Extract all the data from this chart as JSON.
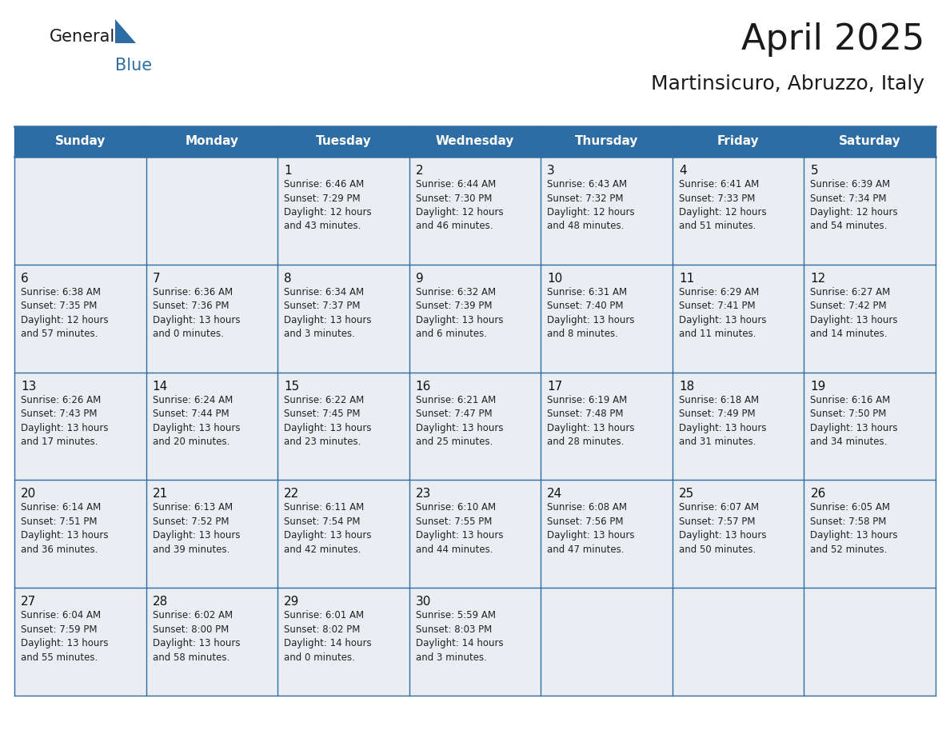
{
  "title": "April 2025",
  "subtitle": "Martinsicuro, Abruzzo, Italy",
  "header_bg": "#2E6DA4",
  "header_text": "#FFFFFF",
  "cell_bg": "#EAEEF2",
  "cell_bg_empty": "#EAEEF2",
  "day_number_color": "#111111",
  "text_color": "#222222",
  "line_color": "#2E6DA4",
  "bg_color": "#FFFFFF",
  "days_of_week": [
    "Sunday",
    "Monday",
    "Tuesday",
    "Wednesday",
    "Thursday",
    "Friday",
    "Saturday"
  ],
  "weeks": [
    [
      {
        "day": "",
        "info": ""
      },
      {
        "day": "",
        "info": ""
      },
      {
        "day": "1",
        "info": "Sunrise: 6:46 AM\nSunset: 7:29 PM\nDaylight: 12 hours\nand 43 minutes."
      },
      {
        "day": "2",
        "info": "Sunrise: 6:44 AM\nSunset: 7:30 PM\nDaylight: 12 hours\nand 46 minutes."
      },
      {
        "day": "3",
        "info": "Sunrise: 6:43 AM\nSunset: 7:32 PM\nDaylight: 12 hours\nand 48 minutes."
      },
      {
        "day": "4",
        "info": "Sunrise: 6:41 AM\nSunset: 7:33 PM\nDaylight: 12 hours\nand 51 minutes."
      },
      {
        "day": "5",
        "info": "Sunrise: 6:39 AM\nSunset: 7:34 PM\nDaylight: 12 hours\nand 54 minutes."
      }
    ],
    [
      {
        "day": "6",
        "info": "Sunrise: 6:38 AM\nSunset: 7:35 PM\nDaylight: 12 hours\nand 57 minutes."
      },
      {
        "day": "7",
        "info": "Sunrise: 6:36 AM\nSunset: 7:36 PM\nDaylight: 13 hours\nand 0 minutes."
      },
      {
        "day": "8",
        "info": "Sunrise: 6:34 AM\nSunset: 7:37 PM\nDaylight: 13 hours\nand 3 minutes."
      },
      {
        "day": "9",
        "info": "Sunrise: 6:32 AM\nSunset: 7:39 PM\nDaylight: 13 hours\nand 6 minutes."
      },
      {
        "day": "10",
        "info": "Sunrise: 6:31 AM\nSunset: 7:40 PM\nDaylight: 13 hours\nand 8 minutes."
      },
      {
        "day": "11",
        "info": "Sunrise: 6:29 AM\nSunset: 7:41 PM\nDaylight: 13 hours\nand 11 minutes."
      },
      {
        "day": "12",
        "info": "Sunrise: 6:27 AM\nSunset: 7:42 PM\nDaylight: 13 hours\nand 14 minutes."
      }
    ],
    [
      {
        "day": "13",
        "info": "Sunrise: 6:26 AM\nSunset: 7:43 PM\nDaylight: 13 hours\nand 17 minutes."
      },
      {
        "day": "14",
        "info": "Sunrise: 6:24 AM\nSunset: 7:44 PM\nDaylight: 13 hours\nand 20 minutes."
      },
      {
        "day": "15",
        "info": "Sunrise: 6:22 AM\nSunset: 7:45 PM\nDaylight: 13 hours\nand 23 minutes."
      },
      {
        "day": "16",
        "info": "Sunrise: 6:21 AM\nSunset: 7:47 PM\nDaylight: 13 hours\nand 25 minutes."
      },
      {
        "day": "17",
        "info": "Sunrise: 6:19 AM\nSunset: 7:48 PM\nDaylight: 13 hours\nand 28 minutes."
      },
      {
        "day": "18",
        "info": "Sunrise: 6:18 AM\nSunset: 7:49 PM\nDaylight: 13 hours\nand 31 minutes."
      },
      {
        "day": "19",
        "info": "Sunrise: 6:16 AM\nSunset: 7:50 PM\nDaylight: 13 hours\nand 34 minutes."
      }
    ],
    [
      {
        "day": "20",
        "info": "Sunrise: 6:14 AM\nSunset: 7:51 PM\nDaylight: 13 hours\nand 36 minutes."
      },
      {
        "day": "21",
        "info": "Sunrise: 6:13 AM\nSunset: 7:52 PM\nDaylight: 13 hours\nand 39 minutes."
      },
      {
        "day": "22",
        "info": "Sunrise: 6:11 AM\nSunset: 7:54 PM\nDaylight: 13 hours\nand 42 minutes."
      },
      {
        "day": "23",
        "info": "Sunrise: 6:10 AM\nSunset: 7:55 PM\nDaylight: 13 hours\nand 44 minutes."
      },
      {
        "day": "24",
        "info": "Sunrise: 6:08 AM\nSunset: 7:56 PM\nDaylight: 13 hours\nand 47 minutes."
      },
      {
        "day": "25",
        "info": "Sunrise: 6:07 AM\nSunset: 7:57 PM\nDaylight: 13 hours\nand 50 minutes."
      },
      {
        "day": "26",
        "info": "Sunrise: 6:05 AM\nSunset: 7:58 PM\nDaylight: 13 hours\nand 52 minutes."
      }
    ],
    [
      {
        "day": "27",
        "info": "Sunrise: 6:04 AM\nSunset: 7:59 PM\nDaylight: 13 hours\nand 55 minutes."
      },
      {
        "day": "28",
        "info": "Sunrise: 6:02 AM\nSunset: 8:00 PM\nDaylight: 13 hours\nand 58 minutes."
      },
      {
        "day": "29",
        "info": "Sunrise: 6:01 AM\nSunset: 8:02 PM\nDaylight: 14 hours\nand 0 minutes."
      },
      {
        "day": "30",
        "info": "Sunrise: 5:59 AM\nSunset: 8:03 PM\nDaylight: 14 hours\nand 3 minutes."
      },
      {
        "day": "",
        "info": ""
      },
      {
        "day": "",
        "info": ""
      },
      {
        "day": "",
        "info": ""
      }
    ]
  ],
  "logo_general_color": "#1a1a1a",
  "logo_blue_color": "#2E6DA4",
  "title_fontsize": 32,
  "subtitle_fontsize": 18,
  "header_fontsize": 11,
  "day_num_fontsize": 11,
  "info_fontsize": 8.5
}
